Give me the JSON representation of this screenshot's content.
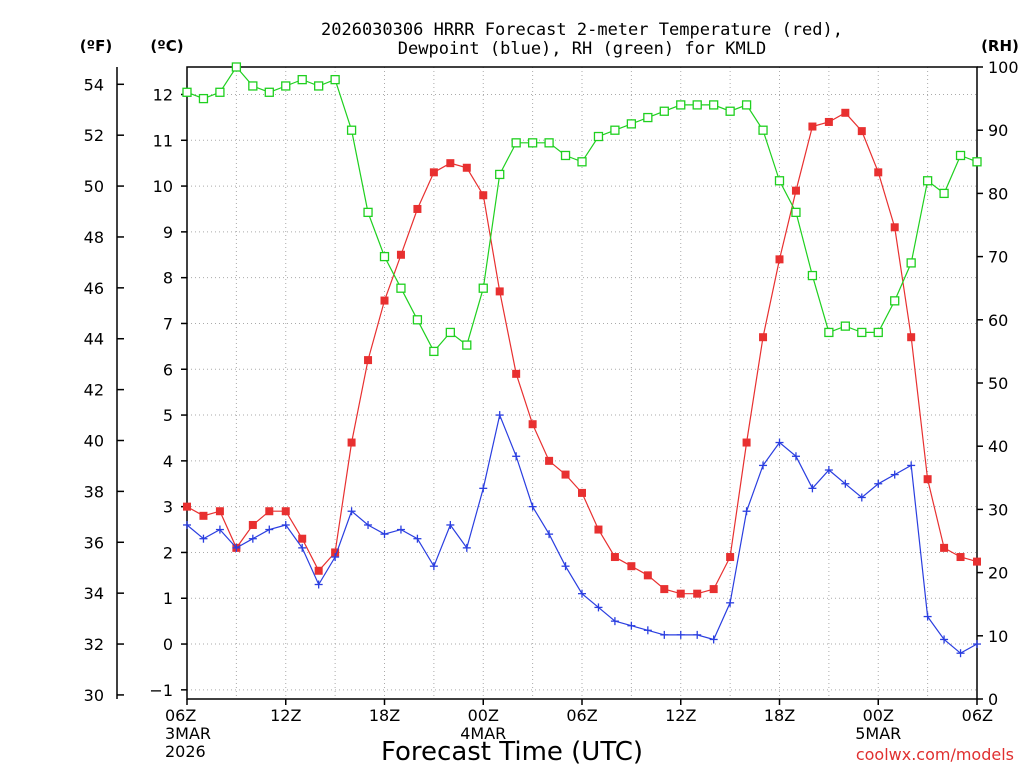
{
  "chart_data": {
    "type": "line",
    "title_line1": "2026030306 HRRR Forecast 2-meter Temperature (red),",
    "title_line2": "Dewpoint (blue), RH (green) for KMLD",
    "left_unit_f": "(ºF)",
    "left_unit_c": "(ºC)",
    "right_unit": "(RH)",
    "xlabel": "Forecast Time (UTC)",
    "credit": "coolwx.com/models",
    "x_ticks": [
      {
        "hour": 0,
        "label": "06Z",
        "sub1": "3MAR",
        "sub2": "2026"
      },
      {
        "hour": 6,
        "label": "12Z"
      },
      {
        "hour": 12,
        "label": "18Z"
      },
      {
        "hour": 18,
        "label": "00Z",
        "sub1": "4MAR"
      },
      {
        "hour": 24,
        "label": "06Z"
      },
      {
        "hour": 30,
        "label": "12Z"
      },
      {
        "hour": 36,
        "label": "18Z"
      },
      {
        "hour": 42,
        "label": "00Z",
        "sub1": "5MAR"
      },
      {
        "hour": 48,
        "label": "06Z"
      }
    ],
    "xlim": [
      0,
      48
    ],
    "y_celsius_lim": [
      -1.2,
      12.6
    ],
    "y_celsius_ticks": [
      -1,
      0,
      1,
      2,
      3,
      4,
      5,
      6,
      7,
      8,
      9,
      10,
      11,
      12
    ],
    "y_fahrenheit_ticks": [
      30,
      32,
      34,
      36,
      38,
      40,
      42,
      44,
      46,
      48,
      50,
      52,
      54
    ],
    "y_rh_lim": [
      0,
      100
    ],
    "y_rh_ticks": [
      0,
      10,
      20,
      30,
      40,
      50,
      60,
      70,
      80,
      90,
      100
    ],
    "colors": {
      "temperature": "#e83030",
      "dewpoint": "#2a3ee0",
      "rh": "#1fd01f",
      "grid": "#aaaaaa",
      "axis": "#000000"
    },
    "series": [
      {
        "name": "Temperature (°C)",
        "axis": "celsius",
        "marker": "filled-square",
        "values": [
          3.0,
          2.8,
          2.9,
          2.1,
          2.6,
          2.9,
          2.9,
          2.3,
          1.6,
          2.0,
          4.4,
          6.2,
          7.5,
          8.5,
          9.5,
          10.3,
          10.5,
          10.4,
          9.8,
          7.7,
          5.9,
          4.8,
          4.0,
          3.7,
          3.3,
          2.5,
          1.9,
          1.7,
          1.5,
          1.2,
          1.1,
          1.1,
          1.2,
          1.9,
          4.4,
          6.7,
          8.4,
          9.9,
          11.3,
          11.4,
          11.6,
          11.2,
          10.3,
          9.1,
          6.7,
          3.6,
          2.1,
          1.9,
          1.8
        ]
      },
      {
        "name": "Dewpoint (°C)",
        "axis": "celsius",
        "marker": "plus",
        "values": [
          2.6,
          2.3,
          2.5,
          2.1,
          2.3,
          2.5,
          2.6,
          2.1,
          1.3,
          1.9,
          2.9,
          2.6,
          2.4,
          2.5,
          2.3,
          1.7,
          2.6,
          2.1,
          3.4,
          5.0,
          4.1,
          3.0,
          2.4,
          1.7,
          1.1,
          0.8,
          0.5,
          0.4,
          0.3,
          0.2,
          0.2,
          0.2,
          0.1,
          0.9,
          2.9,
          3.9,
          4.4,
          4.1,
          3.4,
          3.8,
          3.5,
          3.2,
          3.5,
          3.7,
          3.9,
          0.6,
          0.1,
          -0.2,
          0.0
        ]
      },
      {
        "name": "RH (%)",
        "axis": "rh",
        "marker": "open-square",
        "values": [
          96,
          95,
          96,
          100,
          97,
          96,
          97,
          98,
          97,
          98,
          90,
          77,
          70,
          65,
          60,
          55,
          58,
          56,
          65,
          83,
          88,
          88,
          88,
          86,
          85,
          89,
          90,
          91,
          92,
          93,
          94,
          94,
          94,
          93,
          94,
          90,
          82,
          77,
          67,
          58,
          59,
          58,
          58,
          63,
          69,
          82,
          80,
          86,
          85
        ]
      }
    ]
  }
}
